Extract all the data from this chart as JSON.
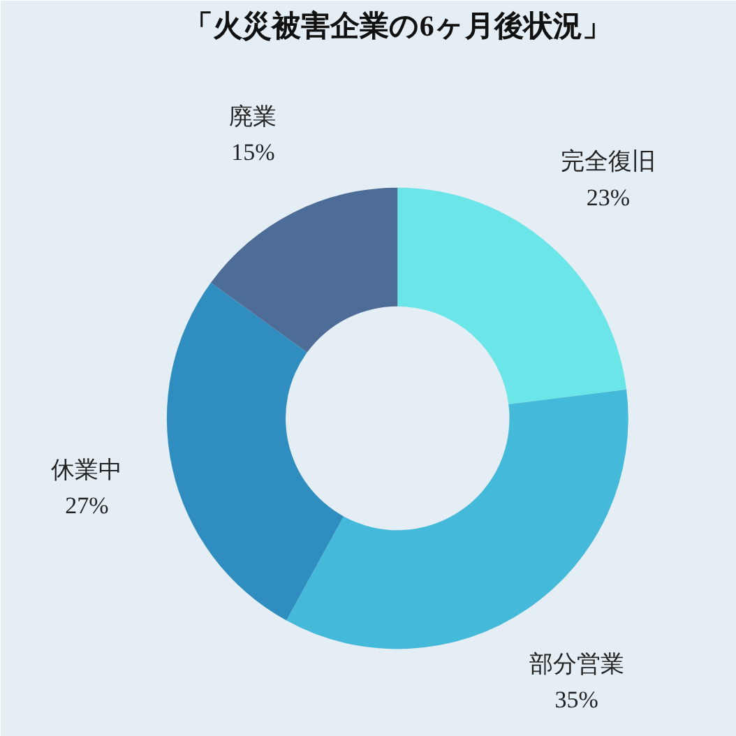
{
  "chart_data": {
    "type": "donut",
    "title": "「火災被害企業の6ヶ月後状況」",
    "categories": [
      "完全復旧",
      "部分営業",
      "休業中",
      "廃業"
    ],
    "values": [
      23,
      35,
      27,
      15
    ],
    "value_labels": [
      "23%",
      "35%",
      "27%",
      "15%"
    ],
    "colors": [
      "#6be5e8",
      "#45b9d9",
      "#2f8dbf",
      "#4e6c98"
    ]
  }
}
